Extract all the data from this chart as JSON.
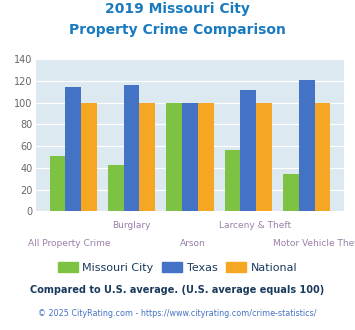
{
  "title_line1": "2019 Missouri City",
  "title_line2": "Property Crime Comparison",
  "title_color": "#1a7abf",
  "categories": [
    "All Property Crime",
    "Burglary",
    "Arson",
    "Larceny & Theft",
    "Motor Vehicle Theft"
  ],
  "missouri_city": [
    51,
    43,
    100,
    56,
    34
  ],
  "texas": [
    115,
    116,
    100,
    112,
    121
  ],
  "national": [
    100,
    100,
    100,
    100,
    100
  ],
  "missouri_color": "#7dc242",
  "texas_color": "#4472c4",
  "national_color": "#f5a623",
  "bar_width": 0.27,
  "ylim": [
    0,
    140
  ],
  "yticks": [
    0,
    20,
    40,
    60,
    80,
    100,
    120,
    140
  ],
  "grid_color": "#ffffff",
  "bg_color": "#dce9f0",
  "xlabel_top": [
    "",
    "Burglary",
    "",
    "Larceny & Theft",
    ""
  ],
  "xlabel_bottom": [
    "All Property Crime",
    "",
    "Arson",
    "",
    "Motor Vehicle Theft"
  ],
  "xlabel_color": "#9b7fa8",
  "legend_labels": [
    "Missouri City",
    "Texas",
    "National"
  ],
  "footnote1": "Compared to U.S. average. (U.S. average equals 100)",
  "footnote2": "© 2025 CityRating.com - https://www.cityrating.com/crime-statistics/",
  "footnote1_color": "#1a3a5c",
  "footnote2_color": "#4472c4"
}
